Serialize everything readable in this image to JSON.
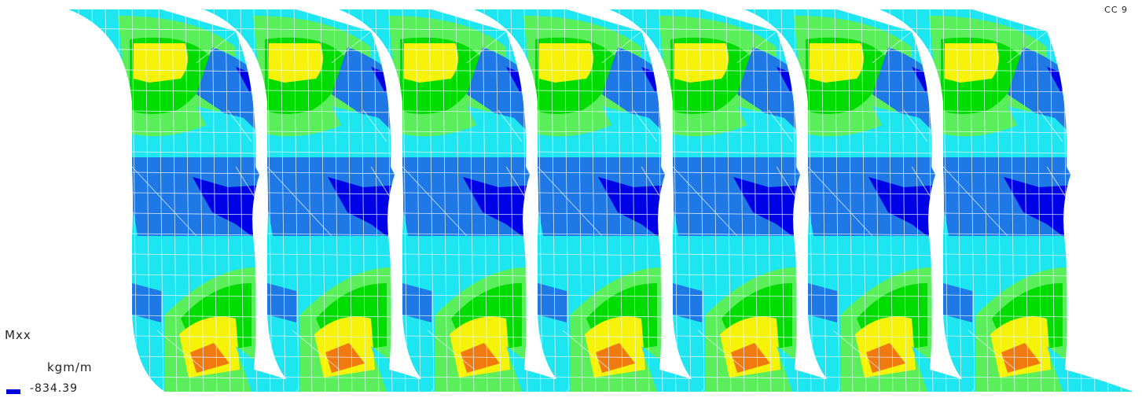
{
  "load_case": "CC 9",
  "result": {
    "quantity": "Mxx",
    "unit": "kgm/m"
  },
  "legend": {
    "entries": [
      {
        "value": "-834.39",
        "color": "#0000e0"
      }
    ]
  },
  "model": {
    "panel_count": 7,
    "palette": {
      "deep_blue": "#0000e6",
      "blue": "#1e78e6",
      "cyan": "#1ee6f0",
      "light_green": "#5aee5a",
      "green": "#00dc00",
      "yellow": "#f6f20a",
      "orange": "#f07a10",
      "mesh": "#e8f4ff"
    }
  }
}
